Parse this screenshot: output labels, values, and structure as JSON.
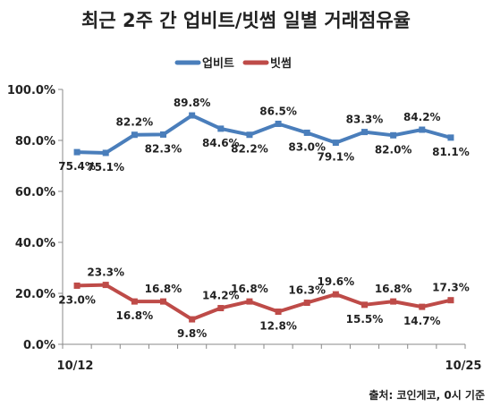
{
  "chart_data": {
    "type": "line",
    "title": "최근 2주 간 업비트/빗썸 일별 거래점유율",
    "source": "출처: 코인게코, 0시 기준",
    "x_start_label": "10/12",
    "x_end_label": "10/25",
    "y_ticks": [
      "0.0%",
      "20.0%",
      "40.0%",
      "60.0%",
      "80.0%",
      "100.0%"
    ],
    "ylim": [
      0,
      100
    ],
    "grid": false,
    "legend_position": "top-center",
    "series": [
      {
        "name": "업비트",
        "color": "#4A7EBB",
        "values": [
          75.4,
          75.1,
          82.2,
          82.3,
          89.8,
          84.6,
          82.2,
          86.5,
          83.0,
          79.1,
          83.3,
          82.0,
          84.2,
          81.1
        ],
        "labels": [
          "75.4%",
          "75.1%",
          "82.2%",
          "82.3%",
          "89.8%",
          "84.6%",
          "82.2%",
          "86.5%",
          "83.0%",
          "79.1%",
          "83.3%",
          "82.0%",
          "84.2%",
          "81.1%"
        ],
        "label_pos": [
          "below",
          "below",
          "above",
          "below",
          "above",
          "below",
          "below",
          "above",
          "below",
          "below",
          "above",
          "below",
          "above",
          "below"
        ]
      },
      {
        "name": "빗썸",
        "color": "#BE4B48",
        "values": [
          23.0,
          23.3,
          16.8,
          16.8,
          9.8,
          14.2,
          16.8,
          12.8,
          16.3,
          19.6,
          15.5,
          16.8,
          14.7,
          17.3
        ],
        "labels": [
          "23.0%",
          "23.3%",
          "16.8%",
          "16.8%",
          "9.8%",
          "14.2%",
          "16.8%",
          "12.8%",
          "16.3%",
          "19.6%",
          "15.5%",
          "16.8%",
          "14.7%",
          "17.3%"
        ],
        "label_pos": [
          "below",
          "above",
          "below",
          "above",
          "below",
          "above",
          "above",
          "below",
          "above",
          "above",
          "below",
          "above",
          "below",
          "above"
        ]
      }
    ]
  }
}
